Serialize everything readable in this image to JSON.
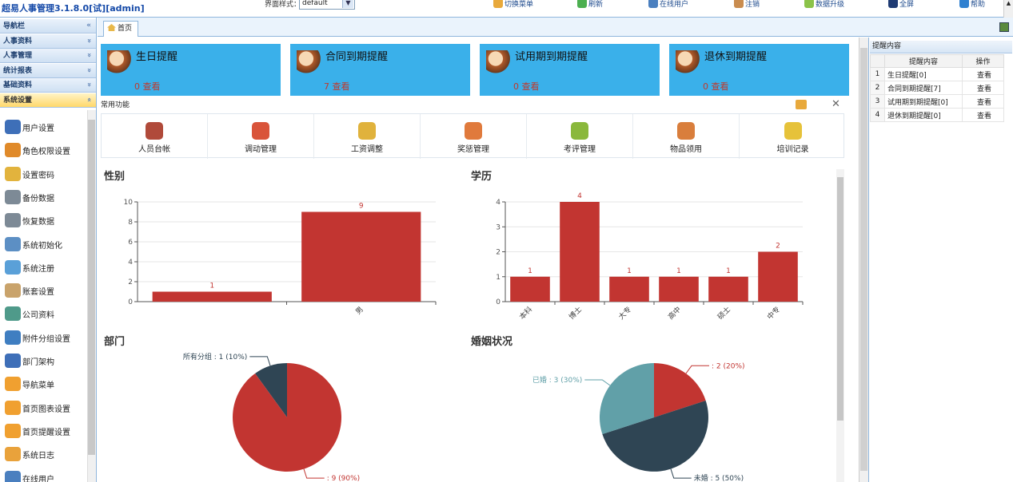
{
  "app_title": "超易人事管理3.1.8.0[试][admin]",
  "skin": {
    "label": "界面样式：",
    "value": "default"
  },
  "toolbar": [
    {
      "label": "切换菜单",
      "icon": "switch-menu-icon",
      "color": "#e8a93c",
      "name": "switch-menu"
    },
    {
      "label": "刷新",
      "icon": "refresh-icon",
      "color": "#4caf50",
      "name": "refresh"
    },
    {
      "label": "在线用户",
      "icon": "online-users-icon",
      "color": "#4a7fbf",
      "name": "online-users"
    },
    {
      "label": "注销",
      "icon": "logout-icon",
      "color": "#c98c4f",
      "name": "logout"
    },
    {
      "label": "数据升级",
      "icon": "data-upgrade-icon",
      "color": "#8bc34a",
      "name": "data-upgrade"
    },
    {
      "label": "全屏",
      "icon": "fullscreen-icon",
      "color": "#1f3b73",
      "name": "fullscreen"
    },
    {
      "label": "帮助",
      "icon": "help-icon",
      "color": "#2f80d0",
      "name": "help"
    }
  ],
  "sidebar": {
    "nav_title": "导航栏",
    "groups": [
      "人事资料",
      "人事管理",
      "统计报表",
      "基础资料",
      "系统设置"
    ],
    "items": [
      {
        "label": "用户设置",
        "icon": "user-settings-icon",
        "color": "#3e6fb8"
      },
      {
        "label": "角色权限设置",
        "icon": "role-permission-icon",
        "color": "#e08a2a"
      },
      {
        "label": "设置密码",
        "icon": "password-icon",
        "color": "#e2b33d"
      },
      {
        "label": "备份数据",
        "icon": "backup-icon",
        "color": "#7d8a96"
      },
      {
        "label": "恢复数据",
        "icon": "restore-icon",
        "color": "#7d8a96"
      },
      {
        "label": "系统初始化",
        "icon": "system-init-icon",
        "color": "#5c8fc4"
      },
      {
        "label": "系统注册",
        "icon": "register-icon",
        "color": "#5aa0d8"
      },
      {
        "label": "账套设置",
        "icon": "account-set-icon",
        "color": "#c9a36b"
      },
      {
        "label": "公司资料",
        "icon": "company-info-icon",
        "color": "#4f9a8a"
      },
      {
        "label": "附件分组设置",
        "icon": "attachment-group-icon",
        "color": "#3f7ec1"
      },
      {
        "label": "部门架构",
        "icon": "department-icon",
        "color": "#3e6fb8"
      },
      {
        "label": "导航菜单",
        "icon": "nav-menu-icon",
        "color": "#f0a030"
      },
      {
        "label": "首页图表设置",
        "icon": "chart-settings-icon",
        "color": "#f0a030"
      },
      {
        "label": "首页提醒设置",
        "icon": "reminder-settings-icon",
        "color": "#f0a030"
      },
      {
        "label": "系统日志",
        "icon": "system-log-icon",
        "color": "#e9a23b"
      },
      {
        "label": "在线用户",
        "icon": "online-users-icon",
        "color": "#4a7fbf"
      }
    ]
  },
  "tab": {
    "label": "首页"
  },
  "reminder_cards": [
    {
      "title": "生日提醒",
      "count": "0",
      "action": "查看",
      "icon": "birthday-icon"
    },
    {
      "title": "合同到期提醒",
      "count": "7",
      "action": "查看",
      "icon": "contract-icon"
    },
    {
      "title": "试用期到期提醒",
      "count": "0",
      "action": "查看",
      "icon": "probation-icon"
    },
    {
      "title": "退休到期提醒",
      "count": "0",
      "action": "查看",
      "icon": "retirement-icon"
    }
  ],
  "common_functions": {
    "title": "常用功能",
    "items": [
      {
        "label": "人员台帐",
        "icon": "staff-ledger-icon",
        "color": "#b04a3a"
      },
      {
        "label": "调动管理",
        "icon": "transfer-icon",
        "color": "#d9543a"
      },
      {
        "label": "工资调整",
        "icon": "salary-icon",
        "color": "#e0b23c"
      },
      {
        "label": "奖惩管理",
        "icon": "reward-icon",
        "color": "#e07a3c"
      },
      {
        "label": "考评管理",
        "icon": "evaluation-icon",
        "color": "#8ab83c"
      },
      {
        "label": "物品领用",
        "icon": "goods-icon",
        "color": "#d97e3c"
      },
      {
        "label": "培训记录",
        "icon": "training-icon",
        "color": "#e6c23a"
      }
    ]
  },
  "colors": {
    "bar": "#c23531",
    "pie_red": "#c23531",
    "pie_dark": "#2f4554",
    "pie_teal": "#61a0a8",
    "card": "#3ab0ea"
  },
  "chart_data": [
    {
      "type": "bar",
      "title": "性别",
      "categories": [
        "",
        "男"
      ],
      "values": [
        1,
        9
      ],
      "ylim": [
        0,
        10
      ],
      "yticks": [
        0,
        2,
        4,
        6,
        8,
        10
      ]
    },
    {
      "type": "bar",
      "title": "学历",
      "categories": [
        "本科",
        "博士",
        "大专",
        "高中",
        "硕士",
        "中专"
      ],
      "values": [
        1,
        4,
        1,
        1,
        1,
        2
      ],
      "ylim": [
        0,
        4
      ],
      "yticks": [
        0,
        1,
        2,
        3,
        4
      ]
    },
    {
      "type": "pie",
      "title": "部门",
      "slices": [
        {
          "label": "所有分组 : 1 (10%)",
          "value": 1
        },
        {
          "label": " : 9 (90%)",
          "value": 9
        }
      ]
    },
    {
      "type": "pie",
      "title": "婚姻状况",
      "slices": [
        {
          "label": " : 2 (20%)",
          "value": 2
        },
        {
          "label": "未婚 : 5 (50%)",
          "value": 5
        },
        {
          "label": "已婚 : 3 (30%)",
          "value": 3
        }
      ]
    }
  ],
  "right_panel": {
    "title": "提醒内容",
    "headers": [
      "提醒内容",
      "操作"
    ],
    "rows": [
      {
        "n": "1",
        "content": "生日提醒[0]",
        "op": "查看"
      },
      {
        "n": "2",
        "content": "合同到期提醒[7]",
        "op": "查看"
      },
      {
        "n": "3",
        "content": "试用期到期提醒[0]",
        "op": "查看"
      },
      {
        "n": "4",
        "content": "退休到期提醒[0]",
        "op": "查看"
      }
    ]
  }
}
